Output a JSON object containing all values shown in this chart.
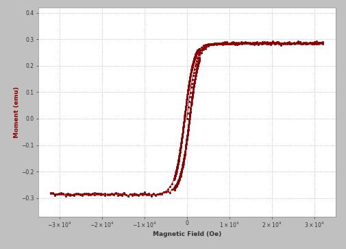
{
  "title": "",
  "xlabel": "Magnetic Field (Oe)",
  "ylabel": "Moment (emu)",
  "xlabel_color": "#333333",
  "ylabel_color": "#8b0000",
  "xlim": [
    -35000,
    35000
  ],
  "ylim": [
    -0.37,
    0.42
  ],
  "yticks": [
    -0.3,
    -0.2,
    -0.1,
    0,
    0.1,
    0.2,
    0.3,
    0.4
  ],
  "xticks": [
    -30000,
    -20000,
    -10000,
    0,
    10000,
    20000,
    30000
  ],
  "line_color": "#8b0000",
  "marker_color": "#8b0000",
  "bg_outer": "#c0c0c0",
  "bg_inner": "#ffffff",
  "Ms": 0.285,
  "Hc": 600,
  "a_steep": 2200,
  "grid_color": "#b0b0b0",
  "grid_style": ":",
  "marker_size": 2.2,
  "line_width": 0.6
}
